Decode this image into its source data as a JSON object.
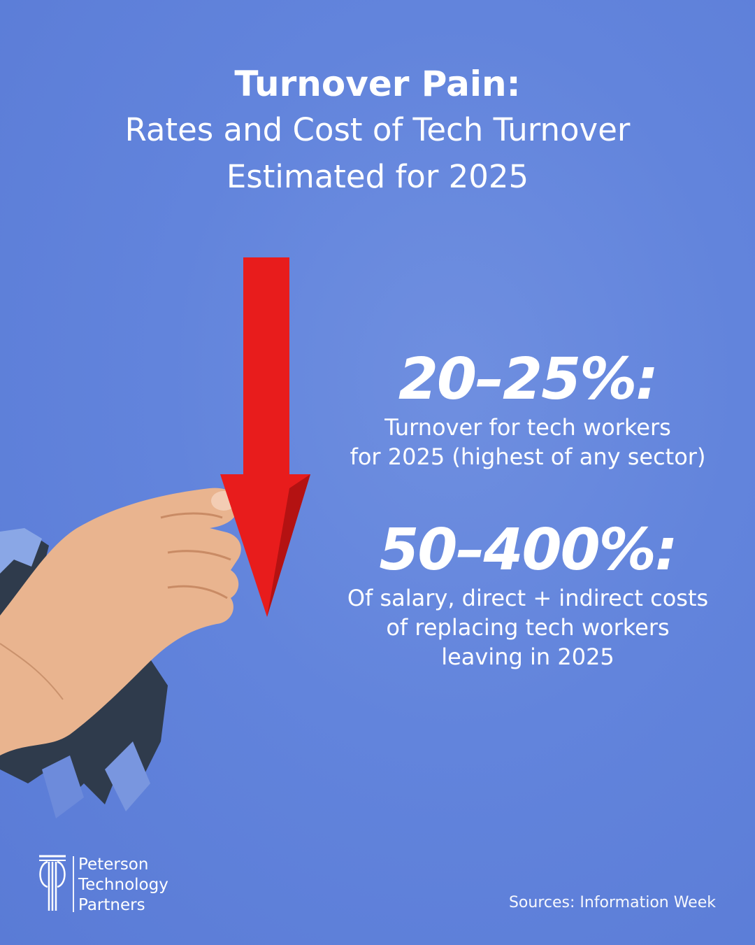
{
  "headline": {
    "title": "Turnover Pain:",
    "subtitle_lines": [
      "Rates and Cost of Tech Turnover",
      "Estimated for 2025"
    ]
  },
  "stats": [
    {
      "value": "20–25%:",
      "desc_lines": [
        "Turnover for tech workers",
        "for 2025 (highest of any sector)"
      ]
    },
    {
      "value": "50–400%:",
      "desc_lines": [
        "Of salary, direct + indirect costs",
        "of replacing tech workers",
        "leaving in 2025"
      ]
    }
  ],
  "logo": {
    "lines": [
      "Peterson",
      "Technology",
      "Partners"
    ]
  },
  "source": "Sources: Information Week",
  "colors": {
    "background": "#6284dc",
    "arrow": "#e81c1c",
    "text": "#ffffff"
  },
  "icons": {
    "arrow": "down-arrow-icon",
    "hand": "hand-icon",
    "logo_mark": "ptp-logo-icon"
  }
}
